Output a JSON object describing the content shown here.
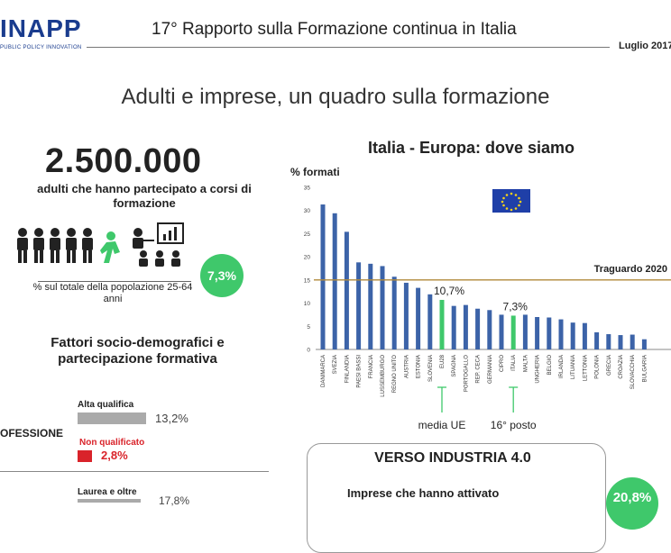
{
  "header": {
    "logo": "INAPP",
    "logo_sub": "PUBLIC POLICY INNOVATION",
    "title": "17° Rapporto sulla Formazione continua in Italia",
    "date": "Luglio 2017"
  },
  "section_title": "Adulti e imprese, un quadro sulla formazione",
  "left": {
    "big_number": "2.500.000",
    "big_desc": "adulti che hanno partecipato a corsi di  formazione",
    "pct": "7,3%",
    "pct_desc": "% sul totale della popolazione 25-64 anni",
    "factors_title": "Fattori socio-demografici e partecipazione formativa",
    "profession_label": "OFESSIONE",
    "bars": {
      "high_label": "Alta qualifica",
      "high_value": "13,2%",
      "high_fraction": 0.132,
      "low_label": "Non qualificato",
      "low_value": "2,8%",
      "low_fraction": 0.028,
      "laurea_label": "Laurea e oltre",
      "laurea_value": "17,8%"
    },
    "colors": {
      "green": "#3fc86b",
      "red": "#d9232a",
      "gray": "#aaaaaa"
    }
  },
  "chart_data": {
    "type": "bar",
    "title": "Italia - Europa: dove siamo",
    "ylabel": "% formati",
    "xlabel": "",
    "ylim": [
      0,
      35
    ],
    "yticks": [
      0,
      5,
      10,
      15,
      20,
      25,
      30,
      35
    ],
    "categories": [
      "DANIMARCA",
      "SVEZIA",
      "FINLANDIA",
      "PAESI BASSI",
      "FRANCIA",
      "LUSSEMBURGO",
      "REGNO UNITO",
      "AUSTRIA",
      "ESTONIA",
      "SLOVENIA",
      "EU28",
      "SPAGNA",
      "PORTOGALLO",
      "REP. CECA",
      "GERMANIA",
      "CIPRO",
      "ITALIA",
      "MALTA",
      "UNGHERIA",
      "BELGIO",
      "IRLANDA",
      "LITUANIA",
      "LETTONIA",
      "POLONIA",
      "GRECIA",
      "CROAZIA",
      "SLOVACCHIA",
      "BULGARIA"
    ],
    "values": [
      31.3,
      29.4,
      25.4,
      18.8,
      18.5,
      18.0,
      15.7,
      14.4,
      13.3,
      11.9,
      10.7,
      9.4,
      9.6,
      8.8,
      8.5,
      7.5,
      7.3,
      7.5,
      7.0,
      6.9,
      6.5,
      5.8,
      5.7,
      3.7,
      3.3,
      3.1,
      3.2,
      2.2
    ],
    "highlight": [
      "EU28",
      "ITALIA"
    ],
    "bar_color": "#3c63a8",
    "highlight_color": "#3fc86b",
    "target": {
      "label": "Traguardo 2020",
      "value": 15,
      "color": "#b0883a"
    },
    "annotations": {
      "eu_value": "10,7%",
      "italy_value": "7,3%",
      "eu_caption": "media UE",
      "italy_caption": "16° posto"
    },
    "grid": false,
    "legend": "none"
  },
  "industria": {
    "title": "VERSO INDUSTRIA 4.0",
    "desc": "Imprese che hanno attivato",
    "pct": "20,8%"
  }
}
